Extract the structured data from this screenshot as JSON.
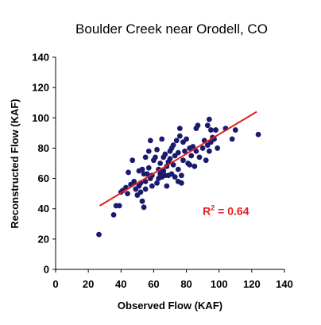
{
  "chart_data": {
    "type": "scatter",
    "title": "Boulder Creek near Orodell, CO",
    "xlabel": "Observed Flow (KAF)",
    "ylabel": "Reconstructed Flow (KAF)",
    "xlim": [
      0,
      140
    ],
    "ylim": [
      0,
      140
    ],
    "xticks": [
      "0",
      "20",
      "40",
      "60",
      "80",
      "100",
      "120",
      "140"
    ],
    "yticks": [
      "0",
      "20",
      "40",
      "60",
      "80",
      "100",
      "120",
      "140"
    ],
    "grid": false,
    "point_color": "#1a1a6e",
    "trendline": {
      "color": "#e31e1e",
      "x": [
        27,
        123
      ],
      "y": [
        42,
        104
      ]
    },
    "annotation": {
      "text": "R",
      "superscript": "2",
      "rest": " = 0.64",
      "color": "#e31e1e",
      "x": 90,
      "y": 36
    },
    "points": [
      [
        26.5,
        23
      ],
      [
        35.5,
        36
      ],
      [
        37,
        42
      ],
      [
        39,
        42
      ],
      [
        40,
        51
      ],
      [
        41,
        52
      ],
      [
        43,
        54
      ],
      [
        44.5,
        64
      ],
      [
        44,
        50
      ],
      [
        46,
        56
      ],
      [
        47,
        72
      ],
      [
        48,
        58
      ],
      [
        49,
        53
      ],
      [
        50,
        49
      ],
      [
        51,
        65
      ],
      [
        51,
        55
      ],
      [
        52,
        51
      ],
      [
        52,
        57
      ],
      [
        53,
        66
      ],
      [
        53,
        45
      ],
      [
        54,
        63
      ],
      [
        54,
        41
      ],
      [
        55,
        58
      ],
      [
        55,
        53
      ],
      [
        55,
        74
      ],
      [
        56,
        63
      ],
      [
        57,
        67
      ],
      [
        57,
        78
      ],
      [
        58,
        60
      ],
      [
        58,
        85
      ],
      [
        59,
        55
      ],
      [
        59,
        62
      ],
      [
        60,
        72
      ],
      [
        61,
        74
      ],
      [
        62,
        79
      ],
      [
        62,
        57
      ],
      [
        63,
        66
      ],
      [
        63,
        60
      ],
      [
        64,
        63
      ],
      [
        64,
        70
      ],
      [
        65,
        61
      ],
      [
        65,
        86
      ],
      [
        66,
        65
      ],
      [
        66,
        74
      ],
      [
        67,
        62
      ],
      [
        67,
        76
      ],
      [
        68,
        55
      ],
      [
        68,
        68
      ],
      [
        69,
        71
      ],
      [
        69,
        62
      ],
      [
        70,
        73
      ],
      [
        70,
        78
      ],
      [
        71,
        80
      ],
      [
        71,
        63
      ],
      [
        72,
        69
      ],
      [
        72,
        82
      ],
      [
        73,
        75
      ],
      [
        73,
        61
      ],
      [
        74,
        85
      ],
      [
        75,
        66
      ],
      [
        75,
        58
      ],
      [
        75,
        77
      ],
      [
        76,
        88
      ],
      [
        76,
        93
      ],
      [
        77,
        62
      ],
      [
        77,
        57
      ],
      [
        78,
        84
      ],
      [
        78,
        72
      ],
      [
        79,
        78
      ],
      [
        80,
        86
      ],
      [
        81,
        70
      ],
      [
        82,
        69
      ],
      [
        82,
        80
      ],
      [
        83,
        75
      ],
      [
        84,
        81
      ],
      [
        85,
        68
      ],
      [
        86,
        78
      ],
      [
        86,
        93
      ],
      [
        87,
        95
      ],
      [
        88,
        74
      ],
      [
        90,
        80
      ],
      [
        91,
        85
      ],
      [
        92,
        72
      ],
      [
        93,
        95
      ],
      [
        93,
        82
      ],
      [
        94,
        99
      ],
      [
        94,
        78
      ],
      [
        95,
        84
      ],
      [
        95,
        92
      ],
      [
        96,
        87
      ],
      [
        97,
        86
      ],
      [
        98,
        92
      ],
      [
        99,
        80
      ],
      [
        104,
        93
      ],
      [
        108,
        86
      ],
      [
        110,
        92
      ],
      [
        124,
        89
      ]
    ]
  }
}
